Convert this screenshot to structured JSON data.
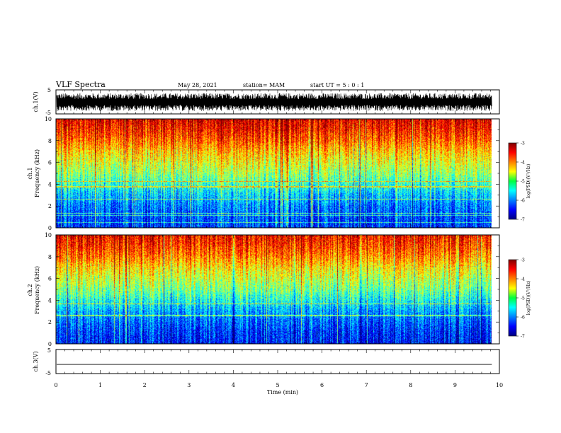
{
  "header": {
    "title": "VLF Spectra",
    "date": "May 28, 2021",
    "station": "station= MAM",
    "start": "start  UT  =   5  : 0  : 1"
  },
  "chart_data": [
    {
      "type": "line",
      "panel": "ch1-waveform",
      "ylabel": "ch.1(V)",
      "ylim": [
        -5,
        5
      ],
      "yticks": [
        5,
        -5
      ],
      "description_values": "dense noisy waveform, amplitude roughly -4 to +4 V, sustained over 0-9.8 min"
    },
    {
      "type": "heatmap",
      "panel": "ch1-spectrogram",
      "ylabel": "ch.1 Frequency (kHz)",
      "xlim": [
        0,
        10
      ],
      "ylim": [
        0,
        10
      ],
      "yticks": [
        0,
        2,
        4,
        6,
        8,
        10
      ],
      "data_end_min": 9.83,
      "colorbar": {
        "label": "log(PSD)(V²/Hz)",
        "range": [
          -7,
          -3
        ],
        "ticks": [
          "-3",
          "-4",
          "-5",
          "-6",
          "-7"
        ]
      },
      "levels_by_freq_khz": [
        [
          0,
          -6.3
        ],
        [
          1,
          -6.2
        ],
        [
          2,
          -6.0
        ],
        [
          3,
          -5.7
        ],
        [
          4,
          -5.3
        ],
        [
          5,
          -4.9
        ],
        [
          6,
          -4.6
        ],
        [
          7,
          -4.3
        ],
        [
          8,
          -3.9
        ],
        [
          9,
          -3.6
        ],
        [
          10,
          -3.4
        ]
      ]
    },
    {
      "type": "heatmap",
      "panel": "ch2-spectrogram",
      "ylabel": "ch.2 Frequency (kHz)",
      "xlim": [
        0,
        10
      ],
      "ylim": [
        0,
        10
      ],
      "yticks": [
        0,
        2,
        4,
        6,
        8,
        10
      ],
      "data_end_min": 9.83,
      "colorbar": {
        "label": "log(PSD)(V²/Hz)",
        "range": [
          -7,
          -3
        ],
        "ticks": [
          "-3",
          "-4",
          "-5",
          "-6",
          "-7"
        ]
      },
      "levels_by_freq_khz": [
        [
          0,
          -6.4
        ],
        [
          1,
          -6.3
        ],
        [
          2,
          -6.1
        ],
        [
          3,
          -5.8
        ],
        [
          4,
          -5.4
        ],
        [
          5,
          -5.0
        ],
        [
          6,
          -4.7
        ],
        [
          7,
          -4.4
        ],
        [
          8,
          -4.0
        ],
        [
          9,
          -3.7
        ],
        [
          10,
          -3.5
        ]
      ]
    },
    {
      "type": "line",
      "panel": "ch3-waveform",
      "ylabel": "ch.3(V)",
      "ylim": [
        -5,
        5
      ],
      "yticks": [
        5,
        -5
      ],
      "x": [
        0,
        9.83
      ],
      "y": [
        -1.2,
        -1.2
      ]
    }
  ],
  "xaxis": {
    "label": "Time  (min)",
    "ticks": [
      "0",
      "1",
      "2",
      "3",
      "4",
      "5",
      "6",
      "7",
      "8",
      "9",
      "10"
    ]
  }
}
